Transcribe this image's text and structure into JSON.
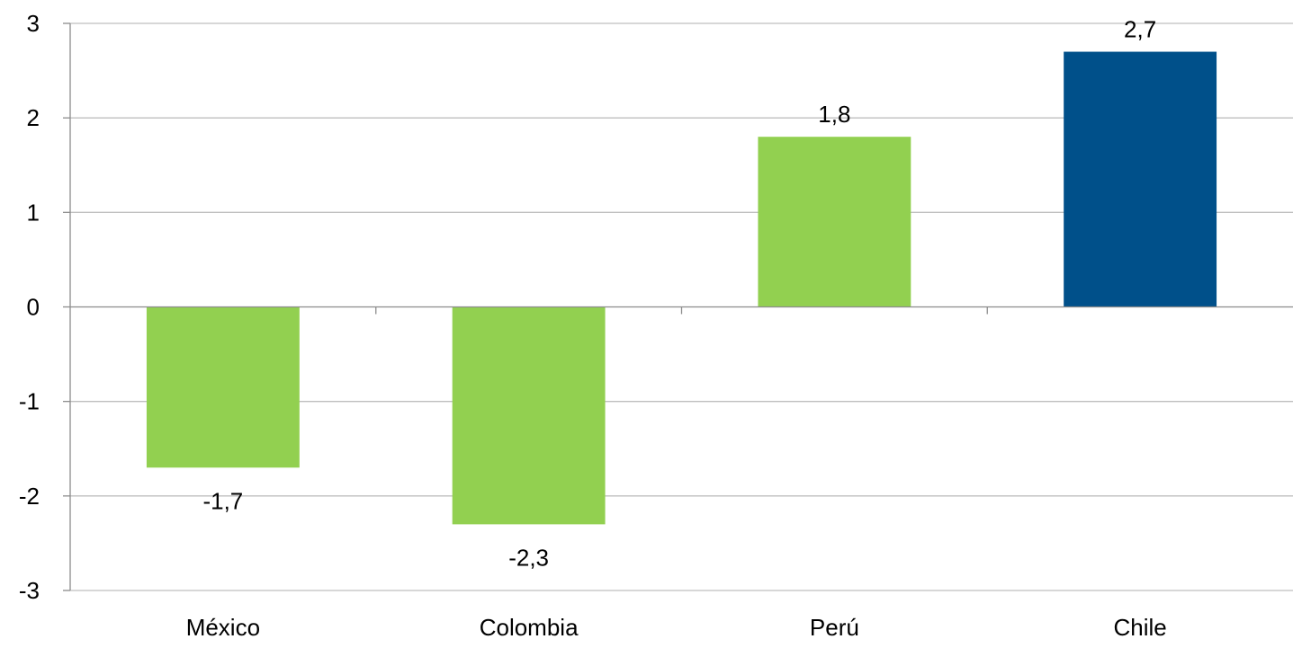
{
  "chart_data": {
    "type": "bar",
    "title": "",
    "xlabel": "",
    "ylabel": "",
    "categories": [
      "México",
      "Colombia",
      "Perú",
      "Chile"
    ],
    "values": [
      -1.7,
      -2.3,
      1.8,
      2.7
    ],
    "value_labels": [
      "-1,7",
      "-2,3",
      "1,8",
      "2,7"
    ],
    "bar_colors": [
      "#92d050",
      "#92d050",
      "#92d050",
      "#00508a"
    ],
    "ylim": [
      -3,
      3
    ],
    "yticks": [
      3,
      2,
      1,
      0,
      -1,
      -2,
      -3
    ],
    "ytick_labels": [
      "3",
      "2",
      "1",
      "0",
      "-1",
      "-2",
      "-3"
    ],
    "grid": true,
    "legend": "none"
  },
  "colors": {
    "highlight": "#00508a",
    "default_bar": "#92d050",
    "gridline": "#bfbfbf",
    "axis": "#8c8c8c"
  }
}
